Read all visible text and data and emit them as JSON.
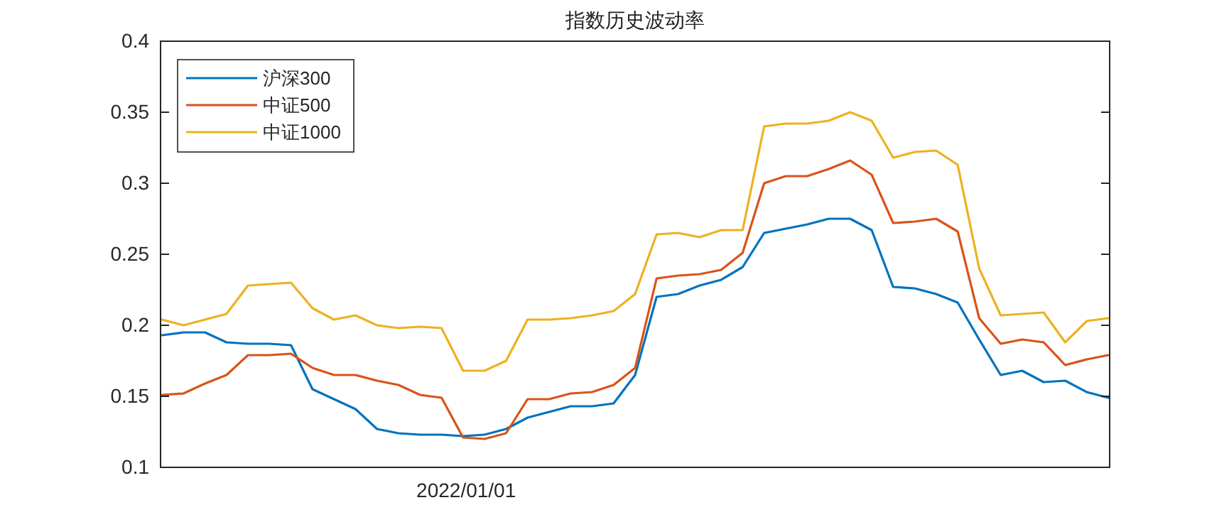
{
  "chart_data": {
    "type": "line",
    "title": "指数历史波动率",
    "categories": [
      null,
      null,
      null,
      null,
      null,
      null,
      null,
      null,
      null,
      null,
      null,
      null,
      null,
      null,
      null,
      null,
      null,
      null,
      null,
      null,
      null,
      null,
      null,
      null,
      null,
      null,
      null,
      null,
      null,
      null,
      null,
      null,
      null,
      null,
      null,
      null,
      null,
      null,
      null,
      null,
      null,
      null,
      null,
      null,
      null
    ],
    "series": [
      {
        "name": "沪深300",
        "color": "#0072bd",
        "values": [
          0.193,
          0.195,
          0.195,
          0.188,
          0.187,
          0.187,
          0.186,
          0.155,
          0.148,
          0.141,
          0.127,
          0.124,
          0.123,
          0.123,
          0.122,
          0.123,
          0.127,
          0.135,
          0.139,
          0.143,
          0.143,
          0.145,
          0.165,
          0.22,
          0.222,
          0.228,
          0.232,
          0.241,
          0.265,
          0.268,
          0.271,
          0.275,
          0.275,
          0.267,
          0.227,
          0.226,
          0.222,
          0.216,
          0.19,
          0.165,
          0.168,
          0.16,
          0.161,
          0.153,
          0.149
        ]
      },
      {
        "name": "中证500",
        "color": "#d95319",
        "values": [
          0.151,
          0.152,
          0.159,
          0.165,
          0.179,
          0.179,
          0.18,
          0.17,
          0.165,
          0.165,
          0.161,
          0.158,
          0.151,
          0.149,
          0.121,
          0.12,
          0.124,
          0.148,
          0.148,
          0.152,
          0.153,
          0.158,
          0.17,
          0.233,
          0.235,
          0.236,
          0.239,
          0.251,
          0.3,
          0.305,
          0.305,
          0.31,
          0.316,
          0.306,
          0.272,
          0.273,
          0.275,
          0.266,
          0.205,
          0.187,
          0.19,
          0.188,
          0.172,
          0.176,
          0.179
        ]
      },
      {
        "name": "中证1000",
        "color": "#edb120",
        "values": [
          0.204,
          0.2,
          0.204,
          0.208,
          0.228,
          0.229,
          0.23,
          0.212,
          0.204,
          0.207,
          0.2,
          0.198,
          0.199,
          0.198,
          0.168,
          0.168,
          0.175,
          0.204,
          0.204,
          0.205,
          0.207,
          0.21,
          0.222,
          0.264,
          0.265,
          0.262,
          0.267,
          0.267,
          0.34,
          0.342,
          0.342,
          0.344,
          0.35,
          0.344,
          0.318,
          0.322,
          0.323,
          0.313,
          0.24,
          0.207,
          0.208,
          0.209,
          0.188,
          0.203,
          0.205
        ]
      }
    ],
    "annotations": [
      "2022/01/01"
    ],
    "ylim": [
      0.1,
      0.4
    ],
    "yticks": [
      0.1,
      0.15,
      0.2,
      0.25,
      0.3,
      0.35,
      0.4
    ],
    "grid": false,
    "legend": "top left",
    "marker": "none",
    "line_style": "solid"
  }
}
